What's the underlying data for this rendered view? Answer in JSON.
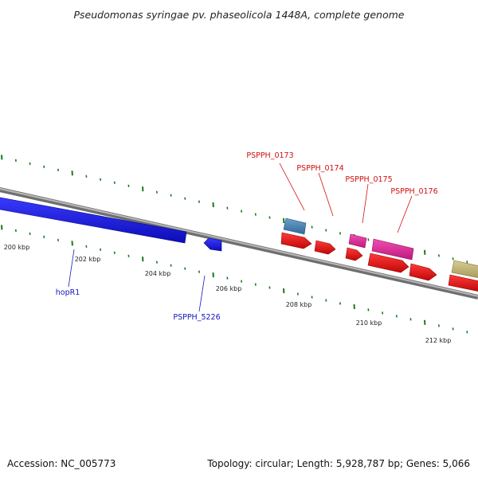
{
  "title": "Pseudomonas syringae pv. phaseolicola 1448A, complete genome",
  "footer": {
    "accession": "Accession: NC_005773",
    "summary": "Topology: circular; Length: 5,928,787 bp; Genes: 5,066"
  },
  "ticks": [
    "200 kbp",
    "202 kbp",
    "204 kbp",
    "206 kbp",
    "208 kbp",
    "210 kbp",
    "212 kbp"
  ],
  "gene_labels": {
    "hopR1": "hopR1",
    "PSPPH_5226": "PSPPH_5226",
    "PSPPH_0173": "PSPPH_0173",
    "PSPPH_0174": "PSPPH_0174",
    "PSPPH_0175": "PSPPH_0175",
    "PSPPH_0176": "PSPPH_0176"
  },
  "colors": {
    "tick": "#1a7a1a",
    "backbone": "#808080",
    "label_red": "#d01010",
    "label_blue": "#1515b8",
    "gene_blue": "#1a1ae6",
    "gene_red": "#e81212",
    "gene_steel": "#4a82b4",
    "gene_pink": "#e0239a",
    "gene_khaki": "#c2b67a"
  }
}
